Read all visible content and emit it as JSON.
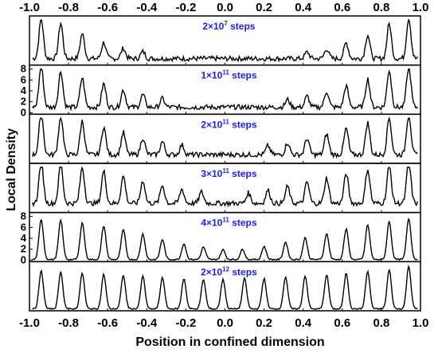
{
  "chart_data": {
    "type": "line",
    "xlabel": "Position in confined dimension",
    "ylabel": "Local Density",
    "xlim": [
      -1.0,
      1.0
    ],
    "x_ticks": [
      "-1.0",
      "-0.8",
      "-0.6",
      "-0.4",
      "-0.2",
      "0.0",
      "0.2",
      "0.4",
      "0.6",
      "0.8",
      "1.0"
    ],
    "x_ticks_top": [
      "-1.0",
      "-0.8",
      "-0.6",
      "-0.4",
      "-0.2",
      "0.0",
      "0.2",
      "0.4",
      "0.6",
      "0.8",
      "1.0"
    ],
    "ylim": [
      0,
      8
    ],
    "y_ticks": [
      "0",
      "2",
      "4",
      "6",
      "8"
    ],
    "stacked_panels": true,
    "line_color": "#000000",
    "label_color": "#1a1aff",
    "panels": [
      {
        "label": "2×10",
        "exponent": "7",
        "suffix": " steps",
        "y_ticks_shown": false,
        "peaks": [
          [
            -0.94,
            7.3
          ],
          [
            -0.84,
            6.5
          ],
          [
            -0.73,
            4.6
          ],
          [
            -0.62,
            3.0
          ],
          [
            -0.52,
            1.9
          ],
          [
            -0.42,
            1.3
          ],
          [
            0.42,
            1.2
          ],
          [
            0.52,
            1.8
          ],
          [
            0.62,
            2.9
          ],
          [
            0.73,
            4.4
          ],
          [
            0.84,
            6.4
          ],
          [
            0.94,
            7.6
          ]
        ],
        "baseline": 0.9
      },
      {
        "label": "1×10",
        "exponent": "11",
        "suffix": " steps",
        "y_ticks_shown": true,
        "peaks": [
          [
            -0.94,
            7.6
          ],
          [
            -0.84,
            6.6
          ],
          [
            -0.73,
            5.4
          ],
          [
            -0.62,
            4.3
          ],
          [
            -0.52,
            3.2
          ],
          [
            -0.42,
            2.3
          ],
          [
            -0.32,
            1.6
          ],
          [
            0.32,
            1.4
          ],
          [
            0.42,
            2.0
          ],
          [
            0.52,
            2.9
          ],
          [
            0.62,
            3.9
          ],
          [
            0.73,
            5.2
          ],
          [
            0.84,
            6.8
          ],
          [
            0.94,
            7.6
          ]
        ],
        "baseline": 1.0
      },
      {
        "label": "2×10",
        "exponent": "11",
        "suffix": " steps",
        "y_ticks_shown": false,
        "peaks": [
          [
            -0.94,
            7.8
          ],
          [
            -0.84,
            7.2
          ],
          [
            -0.73,
            6.2
          ],
          [
            -0.62,
            5.1
          ],
          [
            -0.52,
            4.1
          ],
          [
            -0.42,
            3.1
          ],
          [
            -0.32,
            2.4
          ],
          [
            -0.22,
            1.8
          ],
          [
            0.22,
            1.6
          ],
          [
            0.32,
            2.2
          ],
          [
            0.42,
            3.0
          ],
          [
            0.52,
            3.8
          ],
          [
            0.62,
            4.8
          ],
          [
            0.73,
            5.9
          ],
          [
            0.84,
            6.8
          ],
          [
            0.94,
            7.6
          ]
        ],
        "baseline": 1.3
      },
      {
        "label": "3×10",
        "exponent": "11",
        "suffix": " steps",
        "y_ticks_shown": false,
        "peaks": [
          [
            -0.94,
            7.7
          ],
          [
            -0.84,
            7.2
          ],
          [
            -0.73,
            6.6
          ],
          [
            -0.62,
            5.9
          ],
          [
            -0.52,
            5.0
          ],
          [
            -0.42,
            4.2
          ],
          [
            -0.32,
            3.3
          ],
          [
            -0.22,
            2.6
          ],
          [
            -0.12,
            2.1
          ],
          [
            0.12,
            1.9
          ],
          [
            0.22,
            2.4
          ],
          [
            0.32,
            3.1
          ],
          [
            0.42,
            3.9
          ],
          [
            0.52,
            4.7
          ],
          [
            0.62,
            5.5
          ],
          [
            0.73,
            6.3
          ],
          [
            0.84,
            7.0
          ],
          [
            0.94,
            7.6
          ]
        ],
        "baseline": 1.4
      },
      {
        "label": "4×10",
        "exponent": "11",
        "suffix": " steps",
        "y_ticks_shown": true,
        "peaks": [
          [
            -0.94,
            7.4
          ],
          [
            -0.84,
            7.2
          ],
          [
            -0.73,
            6.8
          ],
          [
            -0.62,
            6.2
          ],
          [
            -0.52,
            5.5
          ],
          [
            -0.42,
            4.7
          ],
          [
            -0.32,
            3.7
          ],
          [
            -0.21,
            2.9
          ],
          [
            -0.11,
            2.3
          ],
          [
            -0.01,
            1.8
          ],
          [
            0.09,
            1.9
          ],
          [
            0.2,
            2.4
          ],
          [
            0.31,
            3.2
          ],
          [
            0.41,
            4.0
          ],
          [
            0.52,
            4.8
          ],
          [
            0.62,
            5.6
          ],
          [
            0.73,
            6.4
          ],
          [
            0.84,
            7.0
          ],
          [
            0.94,
            7.6
          ]
        ],
        "baseline": 0.1
      },
      {
        "label": "2×10",
        "exponent": "12",
        "suffix": " steps",
        "y_ticks_shown": false,
        "peaks": [
          [
            -0.94,
            7.0
          ],
          [
            -0.84,
            6.8
          ],
          [
            -0.73,
            6.6
          ],
          [
            -0.62,
            6.4
          ],
          [
            -0.52,
            6.2
          ],
          [
            -0.42,
            6.0
          ],
          [
            -0.32,
            5.8
          ],
          [
            -0.21,
            5.6
          ],
          [
            -0.11,
            5.4
          ],
          [
            -0.01,
            5.5
          ],
          [
            0.1,
            5.6
          ],
          [
            0.2,
            5.6
          ],
          [
            0.31,
            5.9
          ],
          [
            0.41,
            6.1
          ],
          [
            0.52,
            6.3
          ],
          [
            0.62,
            6.6
          ],
          [
            0.73,
            6.9
          ],
          [
            0.84,
            7.2
          ],
          [
            0.94,
            7.9
          ]
        ],
        "baseline": 0.05
      }
    ]
  }
}
